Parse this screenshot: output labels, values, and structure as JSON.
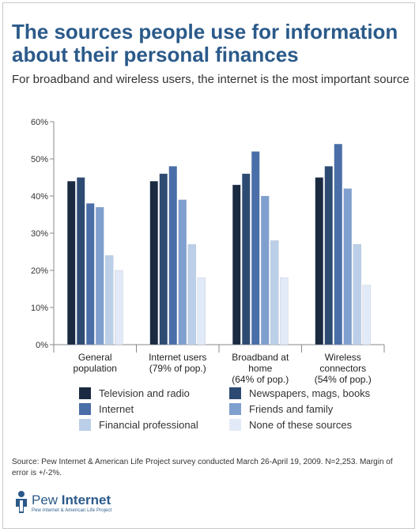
{
  "title": "The sources people use for information about their personal finances",
  "subtitle": "For broadband and wireless users, the internet is the most important source",
  "colors": [
    "#1a2a40",
    "#2d4a72",
    "#4a6ea8",
    "#7f9fcf",
    "#bccfe8",
    "#e3eaf7"
  ],
  "chart_data": {
    "type": "bar",
    "categories": [
      [
        "General",
        "population"
      ],
      [
        "Internet users",
        "(79% of pop.)"
      ],
      [
        "Broadband at",
        "home",
        "(64% of pop.)"
      ],
      [
        "Wireless",
        "connectors",
        "(54% of pop.)"
      ]
    ],
    "series": [
      {
        "name": "Television and radio",
        "values": [
          44,
          44,
          43,
          45
        ]
      },
      {
        "name": "Newspapers, mags, books",
        "values": [
          45,
          46,
          46,
          48
        ]
      },
      {
        "name": "Internet",
        "values": [
          38,
          48,
          52,
          54
        ]
      },
      {
        "name": "Friends and family",
        "values": [
          37,
          39,
          40,
          42
        ]
      },
      {
        "name": "Financial professional",
        "values": [
          24,
          27,
          28,
          27
        ]
      },
      {
        "name": "None of these sources",
        "values": [
          20,
          18,
          18,
          16
        ]
      }
    ],
    "ylim": [
      0,
      60
    ],
    "yticks": [
      "0%",
      "10%",
      "20%",
      "30%",
      "40%",
      "50%",
      "60%"
    ],
    "grid": false,
    "legend_position": "bottom"
  },
  "source": "Source: Pew Internet & American Life Project survey conducted March 26-April 19, 2009. N=2,253. Margin of error is +/-2%.",
  "logo": {
    "name_light": "Pew ",
    "name_bold": "Internet",
    "tagline": "Pew Internet & American Life Project"
  }
}
